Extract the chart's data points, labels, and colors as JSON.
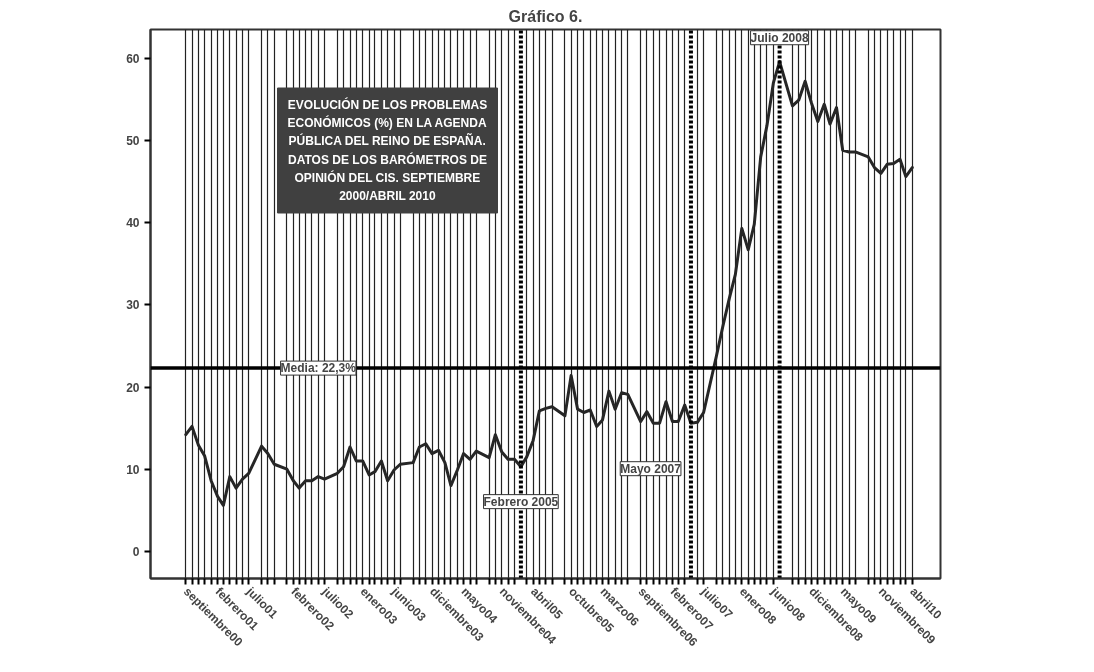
{
  "chart_data": {
    "type": "line",
    "title": "Gráfico 6.",
    "annotations": [
      "EVOLUCIÓN DE LOS PROBLEMAS\nECONÓMICOS (%) EN LA AGENDA\nPÚBLICA DEL REINO DE ESPAÑA.\nDATOS DE LOS BARÓMETROS DE\nOPINIÓN DEL CIS. SEPTIEMBRE\n2000/ABRIL 2010"
    ],
    "x": [
      "2000-09",
      "2000-10",
      "2000-11",
      "2000-12",
      "2001-01",
      "2001-02",
      "2001-03",
      "2001-04",
      "2001-05",
      "2001-06",
      "2001-07",
      "2001-09",
      "2001-10",
      "2001-11",
      "2002-01",
      "2002-02",
      "2002-03",
      "2002-04",
      "2002-05",
      "2002-06",
      "2002-07",
      "2002-09",
      "2002-10",
      "2002-11",
      "2002-12",
      "2003-01",
      "2003-02",
      "2003-03",
      "2003-04",
      "2003-05",
      "2003-06",
      "2003-07",
      "2003-09",
      "2003-10",
      "2003-11",
      "2003-12",
      "2004-01",
      "2004-02",
      "2004-03",
      "2004-04",
      "2004-05",
      "2004-06",
      "2004-07",
      "2004-09",
      "2004-10",
      "2004-11",
      "2004-12",
      "2005-01",
      "2005-02",
      "2005-03",
      "2005-04",
      "2005-05",
      "2005-06",
      "2005-07",
      "2005-09",
      "2005-10",
      "2005-11",
      "2005-12",
      "2006-01",
      "2006-02",
      "2006-03",
      "2006-04",
      "2006-05",
      "2006-06",
      "2006-07",
      "2006-09",
      "2006-10",
      "2006-11",
      "2006-12",
      "2007-01",
      "2007-02",
      "2007-03",
      "2007-04",
      "2007-05",
      "2007-06",
      "2007-07",
      "2007-09",
      "2007-10",
      "2007-11",
      "2007-12",
      "2008-01",
      "2008-02",
      "2008-03",
      "2008-04",
      "2008-05",
      "2008-06",
      "2008-07",
      "2008-09",
      "2008-10",
      "2008-11",
      "2008-12",
      "2009-01",
      "2009-02",
      "2009-03",
      "2009-04",
      "2009-05",
      "2009-06",
      "2009-07",
      "2009-09",
      "2009-10",
      "2009-11",
      "2009-12",
      "2010-01",
      "2010-02",
      "2010-03",
      "2010-04"
    ],
    "series": [
      {
        "color": "#262626",
        "values": [
          14.2,
          15.2,
          12.9,
          11.6,
          8.6,
          6.7,
          5.6,
          9.1,
          7.7,
          8.8,
          9.5,
          12.8,
          11.9,
          10.6,
          10.0,
          8.6,
          7.7,
          8.6,
          8.6,
          9.1,
          8.8,
          9.5,
          10.3,
          12.7,
          11.0,
          11.0,
          9.3,
          9.7,
          11.0,
          8.6,
          9.9,
          10.6,
          10.8,
          12.7,
          13.1,
          11.9,
          12.3,
          10.8,
          8.0,
          9.9,
          11.9,
          11.2,
          12.2,
          11.4,
          14.2,
          12.1,
          11.2,
          11.2,
          10.3,
          11.5,
          13.5,
          17.1,
          17.4,
          17.6,
          16.5,
          21.4,
          17.3,
          16.9,
          17.2,
          15.2,
          16.0,
          19.5,
          17.3,
          19.3,
          19.1,
          15.8,
          17.0,
          15.6,
          15.6,
          18.2,
          15.8,
          15.8,
          17.8,
          15.6,
          15.7,
          16.9,
          23.8,
          27.3,
          30.7,
          33.7,
          39.3,
          36.7,
          39.8,
          48.0,
          51.8,
          57.0,
          59.6,
          54.2,
          54.9,
          57.2,
          54.6,
          52.3,
          54.4,
          52.0,
          54.0,
          48.8,
          48.6,
          48.6,
          48.0,
          46.7,
          46.0,
          47.1,
          47.2,
          47.7,
          45.6,
          46.7
        ]
      }
    ],
    "xlim": [
      "2000-03-15",
      "2010-08-15"
    ],
    "xticks": [
      {
        "value": "2000-09",
        "label": "septiembre00"
      },
      {
        "value": "2000-10",
        "label": null
      },
      {
        "value": "2000-11",
        "label": null
      },
      {
        "value": "2000-12",
        "label": null
      },
      {
        "value": "2001-01",
        "label": null
      },
      {
        "value": "2001-02",
        "label": "febrero01"
      },
      {
        "value": "2001-03",
        "label": null
      },
      {
        "value": "2001-04",
        "label": null
      },
      {
        "value": "2001-05",
        "label": null
      },
      {
        "value": "2001-06",
        "label": null
      },
      {
        "value": "2001-07",
        "label": "julio01"
      },
      {
        "value": "2001-09",
        "label": null
      },
      {
        "value": "2001-10",
        "label": null
      },
      {
        "value": "2001-11",
        "label": null
      },
      {
        "value": "2002-01",
        "label": null
      },
      {
        "value": "2002-02",
        "label": "febrero02"
      },
      {
        "value": "2002-03",
        "label": null
      },
      {
        "value": "2002-04",
        "label": null
      },
      {
        "value": "2002-05",
        "label": null
      },
      {
        "value": "2002-06",
        "label": null
      },
      {
        "value": "2002-07",
        "label": "julio02"
      },
      {
        "value": "2002-09",
        "label": null
      },
      {
        "value": "2002-10",
        "label": null
      },
      {
        "value": "2002-11",
        "label": null
      },
      {
        "value": "2002-12",
        "label": null
      },
      {
        "value": "2003-01",
        "label": "enero03"
      },
      {
        "value": "2003-02",
        "label": null
      },
      {
        "value": "2003-03",
        "label": null
      },
      {
        "value": "2003-04",
        "label": null
      },
      {
        "value": "2003-05",
        "label": null
      },
      {
        "value": "2003-06",
        "label": "junio03"
      },
      {
        "value": "2003-07",
        "label": null
      },
      {
        "value": "2003-09",
        "label": null
      },
      {
        "value": "2003-10",
        "label": null
      },
      {
        "value": "2003-11",
        "label": null
      },
      {
        "value": "2003-12",
        "label": "diciembre03"
      },
      {
        "value": "2004-01",
        "label": null
      },
      {
        "value": "2004-02",
        "label": null
      },
      {
        "value": "2004-03",
        "label": null
      },
      {
        "value": "2004-04",
        "label": null
      },
      {
        "value": "2004-05",
        "label": "mayo04"
      },
      {
        "value": "2004-06",
        "label": null
      },
      {
        "value": "2004-07",
        "label": null
      },
      {
        "value": "2004-09",
        "label": null
      },
      {
        "value": "2004-10",
        "label": null
      },
      {
        "value": "2004-11",
        "label": "noviembre04"
      },
      {
        "value": "2004-12",
        "label": null
      },
      {
        "value": "2005-01",
        "label": null
      },
      {
        "value": "2005-03",
        "label": null
      },
      {
        "value": "2005-04",
        "label": "abril05"
      },
      {
        "value": "2005-05",
        "label": null
      },
      {
        "value": "2005-06",
        "label": null
      },
      {
        "value": "2005-07",
        "label": null
      },
      {
        "value": "2005-09",
        "label": null
      },
      {
        "value": "2005-10",
        "label": "octubre05"
      },
      {
        "value": "2005-11",
        "label": null
      },
      {
        "value": "2005-12",
        "label": null
      },
      {
        "value": "2006-01",
        "label": null
      },
      {
        "value": "2006-02",
        "label": null
      },
      {
        "value": "2006-03",
        "label": "marzo06"
      },
      {
        "value": "2006-04",
        "label": null
      },
      {
        "value": "2006-05",
        "label": null
      },
      {
        "value": "2006-06",
        "label": null
      },
      {
        "value": "2006-07",
        "label": null
      },
      {
        "value": "2006-09",
        "label": "septiembre06"
      },
      {
        "value": "2006-10",
        "label": null
      },
      {
        "value": "2006-11",
        "label": null
      },
      {
        "value": "2006-12",
        "label": null
      },
      {
        "value": "2007-01",
        "label": null
      },
      {
        "value": "2007-02",
        "label": "febrero07"
      },
      {
        "value": "2007-03",
        "label": null
      },
      {
        "value": "2007-04",
        "label": null
      },
      {
        "value": "2007-06",
        "label": null
      },
      {
        "value": "2007-07",
        "label": "julio07"
      },
      {
        "value": "2007-09",
        "label": null
      },
      {
        "value": "2007-10",
        "label": null
      },
      {
        "value": "2007-11",
        "label": null
      },
      {
        "value": "2007-12",
        "label": null
      },
      {
        "value": "2008-01",
        "label": "enero08"
      },
      {
        "value": "2008-02",
        "label": null
      },
      {
        "value": "2008-03",
        "label": null
      },
      {
        "value": "2008-04",
        "label": null
      },
      {
        "value": "2008-05",
        "label": null
      },
      {
        "value": "2008-06",
        "label": "junio08"
      },
      {
        "value": "2008-09",
        "label": null
      },
      {
        "value": "2008-10",
        "label": null
      },
      {
        "value": "2008-11",
        "label": null
      },
      {
        "value": "2008-12",
        "label": "diciembre08"
      },
      {
        "value": "2009-01",
        "label": null
      },
      {
        "value": "2009-02",
        "label": null
      },
      {
        "value": "2009-03",
        "label": null
      },
      {
        "value": "2009-04",
        "label": null
      },
      {
        "value": "2009-05",
        "label": "mayo09"
      },
      {
        "value": "2009-06",
        "label": null
      },
      {
        "value": "2009-07",
        "label": null
      },
      {
        "value": "2009-09",
        "label": null
      },
      {
        "value": "2009-10",
        "label": null
      },
      {
        "value": "2009-11",
        "label": "noviembre09"
      },
      {
        "value": "2009-12",
        "label": null
      },
      {
        "value": "2010-01",
        "label": null
      },
      {
        "value": "2010-02",
        "label": null
      },
      {
        "value": "2010-03",
        "label": null
      },
      {
        "value": "2010-04",
        "label": "abril10"
      }
    ],
    "ylim": [
      -3.3,
      63.5
    ],
    "yticks": [
      0,
      10,
      20,
      30,
      40,
      50,
      60
    ],
    "grid": "x",
    "ref_lines": [
      {
        "axis": "y",
        "value": 22.3,
        "label": "Media: 22,3%",
        "line_style": "solid"
      },
      {
        "axis": "x",
        "value": "2005-02",
        "label": "Febrero 2005",
        "line_style": "dotted"
      },
      {
        "axis": "x",
        "value": "2007-05",
        "label": "Mayo 2007",
        "line_style": "dotted"
      },
      {
        "axis": "x",
        "value": "2008-07",
        "label": "Julio 2008",
        "line_style": "dotted"
      }
    ]
  }
}
